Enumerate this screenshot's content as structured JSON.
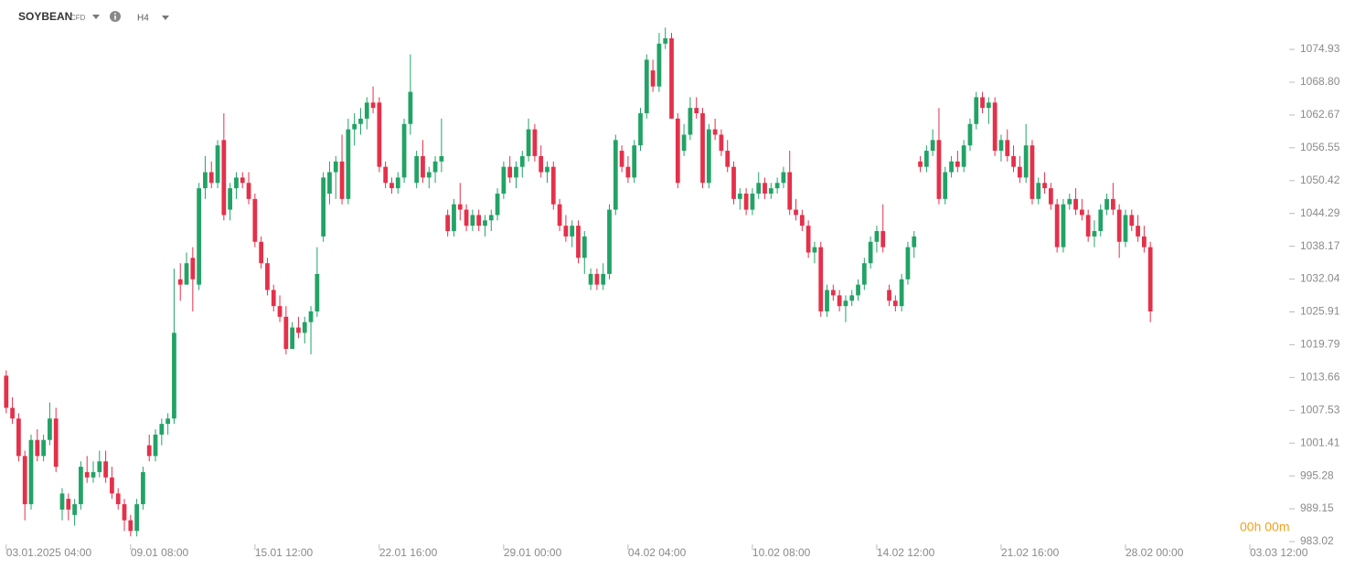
{
  "header": {
    "symbol": "SOYBEAN",
    "instrument_type": "CFD",
    "timeframe": "H4"
  },
  "countdown": "00h 00m",
  "chart_data": {
    "type": "candlestick",
    "up_color": "#22a366",
    "down_color": "#e5304a",
    "open": [
      1014,
      1008,
      1006,
      999,
      990,
      1002,
      999,
      1002,
      1006,
      989,
      991,
      988,
      990,
      996,
      995,
      996,
      998,
      995,
      992,
      990,
      987,
      985,
      990,
      1001,
      999,
      1003,
      1005,
      1006,
      1032,
      1031,
      1036,
      1031,
      1049,
      1052,
      1050,
      1058,
      1045,
      1049,
      1051,
      1050,
      1047,
      1039,
      1035,
      1030,
      1027,
      1025,
      1019,
      1023,
      1022,
      1024,
      1026,
      1040,
      1048,
      1052,
      1054,
      1047,
      1060,
      1061,
      1062,
      1065,
      1065,
      1053,
      1050,
      1049,
      1051,
      1061,
      1050,
      1055,
      1051,
      1052,
      1054,
      1044,
      1041,
      1046,
      1045,
      1042,
      1044,
      1042,
      1043,
      1044,
      1048,
      1053,
      1051,
      1053,
      1055,
      1060,
      1055,
      1052,
      1053,
      1046,
      1042,
      1040,
      1042,
      1036,
      1031,
      1033,
      1031,
      1033,
      1045,
      1056,
      1053,
      1051,
      1057,
      1063,
      1071,
      1068,
      1076,
      1077,
      1062,
      1056,
      1059,
      1064,
      1063,
      1050,
      1060,
      1059,
      1056,
      1053,
      1047,
      1048,
      1045,
      1048,
      1050,
      1048,
      1049,
      1050,
      1052,
      1045,
      1044,
      1042,
      1037,
      1038,
      1026,
      1030,
      1029,
      1027,
      1028,
      1029,
      1031,
      1035,
      1039,
      1041,
      1030,
      1028,
      1027,
      1032,
      1038,
      1054,
      1053,
      1056,
      1058,
      1047,
      1052,
      1054,
      1053,
      1057,
      1061,
      1066,
      1064,
      1065,
      1056,
      1058,
      1055,
      1053,
      1051,
      1057,
      1047,
      1050,
      1049,
      1046,
      1038,
      1046,
      1047,
      1045,
      1044,
      1040,
      1041,
      1045,
      1047,
      1045,
      1039,
      1044,
      1042,
      1040,
      1038
    ],
    "high": [
      1015,
      1010,
      1007,
      1000,
      1003,
      1004,
      1003,
      1009,
      1008,
      993,
      992,
      991,
      998,
      999,
      998,
      1000,
      1000,
      997,
      993,
      991,
      988,
      991,
      997,
      1003,
      1004,
      1006,
      1007,
      1034,
      1035,
      1037,
      1038,
      1050,
      1055,
      1054,
      1058,
      1063,
      1050,
      1052,
      1052,
      1052,
      1048,
      1040,
      1036,
      1031,
      1029,
      1027,
      1024,
      1025,
      1025,
      1027,
      1038,
      1052,
      1054,
      1055,
      1059,
      1062,
      1063,
      1064,
      1066,
      1068,
      1066,
      1054,
      1051,
      1052,
      1062,
      1074,
      1056,
      1058,
      1053,
      1055,
      1062,
      1045,
      1047,
      1050,
      1046,
      1045,
      1045,
      1044,
      1045,
      1049,
      1054,
      1055,
      1054,
      1056,
      1062,
      1061,
      1057,
      1054,
      1054,
      1047,
      1044,
      1043,
      1043,
      1041,
      1034,
      1034,
      1035,
      1046,
      1059,
      1057,
      1055,
      1058,
      1064,
      1074,
      1073,
      1078,
      1079,
      1078,
      1063,
      1061,
      1066,
      1066,
      1064,
      1061,
      1062,
      1060,
      1058,
      1054,
      1049,
      1049,
      1049,
      1052,
      1051,
      1050,
      1051,
      1053,
      1056,
      1047,
      1045,
      1043,
      1039,
      1039,
      1031,
      1031,
      1030,
      1029,
      1030,
      1032,
      1036,
      1040,
      1042,
      1046,
      1031,
      1029,
      1033,
      1039,
      1041,
      1055,
      1057,
      1060,
      1064,
      1053,
      1055,
      1056,
      1058,
      1062,
      1067,
      1067,
      1066,
      1066,
      1059,
      1060,
      1057,
      1055,
      1061,
      1058,
      1051,
      1052,
      1050,
      1047,
      1047,
      1048,
      1049,
      1047,
      1045,
      1043,
      1046,
      1048,
      1050,
      1046,
      1045,
      1045,
      1044,
      1042,
      1039
    ],
    "low": [
      1007,
      1005,
      998,
      987,
      989,
      998,
      998,
      1001,
      996,
      987,
      987,
      986,
      989,
      994,
      994,
      995,
      994,
      991,
      989,
      985,
      984,
      984,
      989,
      998,
      998,
      1001,
      1003,
      1005,
      1028,
      1031,
      1026,
      1030,
      1047,
      1049,
      1049,
      1043,
      1043,
      1047,
      1049,
      1046,
      1038,
      1034,
      1029,
      1026,
      1024,
      1018,
      1019,
      1021,
      1020,
      1018,
      1025,
      1039,
      1046,
      1047,
      1046,
      1046,
      1057,
      1059,
      1060,
      1063,
      1052,
      1049,
      1048,
      1048,
      1050,
      1059,
      1049,
      1050,
      1049,
      1050,
      1052,
      1040,
      1040,
      1043,
      1041,
      1041,
      1041,
      1040,
      1041,
      1043,
      1047,
      1050,
      1049,
      1051,
      1054,
      1054,
      1051,
      1050,
      1045,
      1041,
      1039,
      1038,
      1035,
      1033,
      1030,
      1030,
      1030,
      1032,
      1044,
      1052,
      1050,
      1050,
      1056,
      1062,
      1067,
      1067,
      1075,
      1062,
      1049,
      1055,
      1058,
      1062,
      1049,
      1049,
      1058,
      1055,
      1052,
      1046,
      1045,
      1044,
      1044,
      1047,
      1047,
      1047,
      1048,
      1049,
      1044,
      1043,
      1041,
      1036,
      1035,
      1025,
      1025,
      1028,
      1026,
      1024,
      1027,
      1028,
      1030,
      1034,
      1037,
      1037,
      1027,
      1026,
      1026,
      1031,
      1036,
      1052,
      1052,
      1055,
      1046,
      1046,
      1051,
      1052,
      1052,
      1056,
      1060,
      1063,
      1061,
      1055,
      1054,
      1054,
      1052,
      1050,
      1050,
      1046,
      1046,
      1048,
      1045,
      1037,
      1037,
      1045,
      1044,
      1043,
      1039,
      1038,
      1040,
      1044,
      1044,
      1036,
      1038,
      1041,
      1039,
      1037,
      1024
    ],
    "close": [
      1008,
      1006,
      999,
      990,
      1002,
      999,
      1002,
      1006,
      997,
      992,
      989,
      990,
      997,
      995,
      996,
      998,
      995,
      992,
      990,
      987,
      985,
      990,
      996,
      999,
      1003,
      1005,
      1006,
      1022,
      1031,
      1035,
      1032,
      1049,
      1052,
      1050,
      1057,
      1044,
      1049,
      1051,
      1050,
      1047,
      1039,
      1035,
      1030,
      1027,
      1025,
      1019,
      1023,
      1022,
      1024,
      1026,
      1033,
      1051,
      1052,
      1054,
      1047,
      1060,
      1061,
      1062,
      1065,
      1064,
      1053,
      1050,
      1049,
      1051,
      1061,
      1067,
      1055,
      1051,
      1052,
      1054,
      1055,
      1041,
      1046,
      1045,
      1042,
      1044,
      1042,
      1043,
      1044,
      1048,
      1053,
      1051,
      1053,
      1055,
      1060,
      1055,
      1052,
      1053,
      1046,
      1042,
      1040,
      1042,
      1036,
      1040,
      1033,
      1031,
      1033,
      1045,
      1058,
      1053,
      1051,
      1057,
      1063,
      1073,
      1068,
      1076,
      1077,
      1062,
      1050,
      1059,
      1064,
      1063,
      1050,
      1060,
      1059,
      1056,
      1053,
      1047,
      1048,
      1045,
      1048,
      1050,
      1048,
      1049,
      1050,
      1052,
      1045,
      1044,
      1042,
      1037,
      1038,
      1026,
      1030,
      1029,
      1027,
      1028,
      1029,
      1031,
      1035,
      1039,
      1041,
      1038,
      1028,
      1027,
      1032,
      1038,
      1040,
      1053,
      1056,
      1058,
      1047,
      1052,
      1054,
      1053,
      1057,
      1061,
      1066,
      1064,
      1065,
      1056,
      1058,
      1055,
      1053,
      1051,
      1057,
      1047,
      1050,
      1049,
      1046,
      1038,
      1046,
      1047,
      1045,
      1044,
      1040,
      1041,
      1045,
      1047,
      1045,
      1039,
      1044,
      1042,
      1040,
      1038,
      1026
    ],
    "xlim": [
      -1,
      205
    ],
    "xticks": [
      {
        "value": 0,
        "label": "03.01.2025 04:00"
      },
      {
        "value": 20,
        "label": "09.01 08:00"
      },
      {
        "value": 40,
        "label": "15.01 12:00"
      },
      {
        "value": 60,
        "label": "22.01 16:00"
      },
      {
        "value": 80,
        "label": "29.01 00:00"
      },
      {
        "value": 100,
        "label": "04.02 04:00"
      },
      {
        "value": 120,
        "label": "10.02 08:00"
      },
      {
        "value": 140,
        "label": "14.02 12:00"
      },
      {
        "value": 160,
        "label": "21.02 16:00"
      },
      {
        "value": 180,
        "label": "28.02 00:00"
      },
      {
        "value": 200,
        "label": "03.03 12:00"
      }
    ],
    "ylim": [
      983.02,
      1084.15
    ],
    "yticks": [
      983.02,
      989.15,
      995.28,
      1001.41,
      1007.53,
      1013.66,
      1019.79,
      1025.91,
      1032.04,
      1038.17,
      1044.29,
      1050.42,
      1056.55,
      1062.67,
      {
        "value": 1068.8,
        "label": "1068.80"
      },
      1074.93
    ]
  }
}
